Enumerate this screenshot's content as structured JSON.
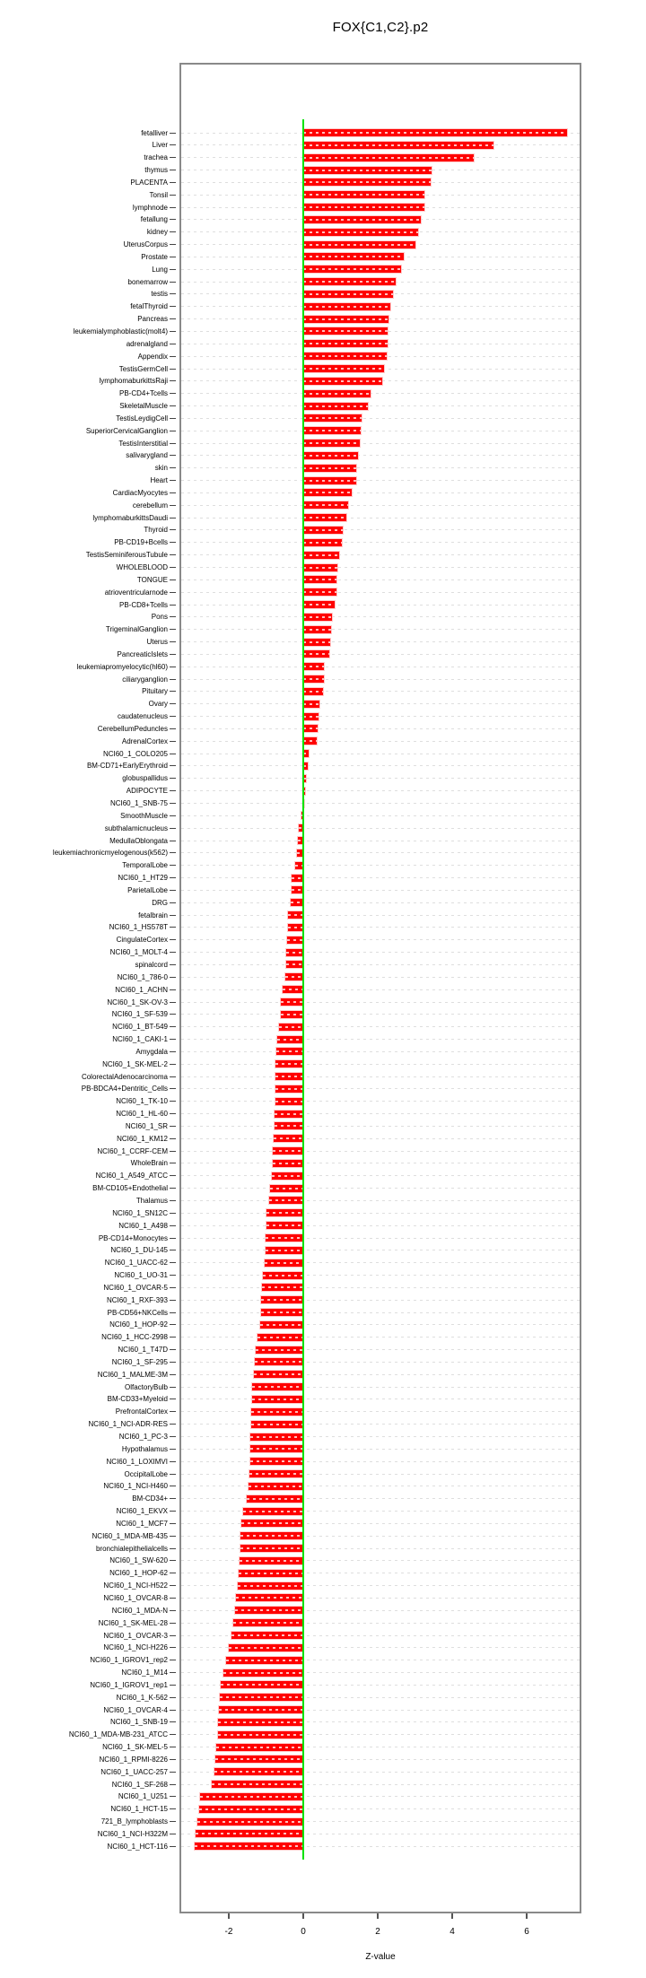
{
  "title": "FOX{C1,C2}.p2",
  "chart_data": {
    "type": "bar",
    "orientation": "horizontal",
    "title": "FOX{C1,C2}.p2",
    "xlabel": "Z-value",
    "ylabel": "",
    "xlim": [
      -3.3,
      7.5
    ],
    "x_ticks": [
      -2,
      0,
      2,
      4,
      6
    ],
    "grid": "dashed horizontal line per category",
    "legend": "none",
    "bar_color": "#ff0000",
    "zero_line_color": "#00e200",
    "grid_color": "#dedede",
    "categories": [
      "fetalliver",
      "Liver",
      "trachea",
      "thymus",
      "PLACENTA",
      "Tonsil",
      "lymphnode",
      "fetallung",
      "kidney",
      "UterusCorpus",
      "Prostate",
      "Lung",
      "bonemarrow",
      "testis",
      "fetalThyroid",
      "Pancreas",
      "leukemialymphoblastic(molt4)",
      "adrenalgland",
      "Appendix",
      "TestisGermCell",
      "lymphomaburkittsRaji",
      "PB-CD4+Tcells",
      "SkeletalMuscle",
      "TestisLeydigCell",
      "SuperiorCervicalGanglion",
      "TestisInterstitial",
      "salivarygland",
      "skin",
      "Heart",
      "CardiacMyocytes",
      "cerebellum",
      "lymphomaburkittsDaudi",
      "Thyroid",
      "PB-CD19+Bcells",
      "TestisSeminiferousTubule",
      "WHOLEBLOOD",
      "TONGUE",
      "atrioventricularnode",
      "PB-CD8+Tcells",
      "Pons",
      "TrigeminalGanglion",
      "Uterus",
      "PancreaticIslets",
      "leukemiapromyelocytic(hl60)",
      "ciliaryganglion",
      "Pituitary",
      "Ovary",
      "caudatenucleus",
      "CerebellumPeduncles",
      "AdrenalCortex",
      "NCI60_1_COLO205",
      "BM-CD71+EarlyErythroid",
      "globuspallidus",
      "ADIPOCYTE",
      "NCI60_1_SNB-75",
      "SmoothMuscle",
      "subthalamicnucleus",
      "MedullaOblongata",
      "leukemiachronicmyelogenous(k562)",
      "TemporalLobe",
      "NCI60_1_HT29",
      "ParietalLobe",
      "DRG",
      "fetalbrain",
      "NCI60_1_HS578T",
      "CingulateCortex",
      "NCI60_1_MOLT-4",
      "spinalcord",
      "NCI60_1_786-0",
      "NCI60_1_ACHN",
      "NCI60_1_SK-OV-3",
      "NCI60_1_SF-539",
      "NCI60_1_BT-549",
      "NCI60_1_CAKI-1",
      "Amygdala",
      "NCI60_1_SK-MEL-2",
      "ColorectalAdenocarcinoma",
      "PB-BDCA4+Dentritic_Cells",
      "NCI60_1_TK-10",
      "NCI60_1_HL-60",
      "NCI60_1_SR",
      "NCI60_1_KM12",
      "NCI60_1_CCRF-CEM",
      "WholeBrain",
      "NCI60_1_A549_ATCC",
      "BM-CD105+Endothelial",
      "Thalamus",
      "NCI60_1_SN12C",
      "NCI60_1_A498",
      "PB-CD14+Monocytes",
      "NCI60_1_DU-145",
      "NCI60_1_UACC-62",
      "NCI60_1_UO-31",
      "NCI60_1_OVCAR-5",
      "NCI60_1_RXF-393",
      "PB-CD56+NKCells",
      "NCI60_1_HOP-92",
      "NCI60_1_HCC-2998",
      "NCI60_1_T47D",
      "NCI60_1_SF-295",
      "NCI60_1_MALME-3M",
      "OlfactoryBulb",
      "BM-CD33+Myeloid",
      "PrefrontalCortex",
      "NCI60_1_NCI-ADR-RES",
      "NCI60_1_PC-3",
      "Hypothalamus",
      "NCI60_1_LOXIMVI",
      "OccipitalLobe",
      "NCI60_1_NCI-H460",
      "BM-CD34+",
      "NCI60_1_EKVX",
      "NCI60_1_MCF7",
      "NCI60_1_MDA-MB-435",
      "bronchialepithelialcells",
      "NCI60_1_SW-620",
      "NCI60_1_HOP-62",
      "NCI60_1_NCI-H522",
      "NCI60_1_OVCAR-8",
      "NCI60_1_MDA-N",
      "NCI60_1_SK-MEL-28",
      "NCI60_1_OVCAR-3",
      "NCI60_1_NCI-H226",
      "NCI60_1_IGROV1_rep2",
      "NCI60_1_M14",
      "NCI60_1_IGROV1_rep1",
      "NCI60_1_K-562",
      "NCI60_1_OVCAR-4",
      "NCI60_1_SNB-19",
      "NCI60_1_MDA-MB-231_ATCC",
      "NCI60_1_SK-MEL-5",
      "NCI60_1_RPMI-8226",
      "NCI60_1_UACC-257",
      "NCI60_1_SF-268",
      "NCI60_1_U251",
      "NCI60_1_HCT-15",
      "721_B_lymphoblasts",
      "NCI60_1_NCI-H322M",
      "NCI60_1_HCT-116"
    ],
    "values": [
      7.08,
      5.11,
      4.57,
      3.44,
      3.42,
      3.26,
      3.25,
      3.16,
      3.09,
      3.0,
      2.71,
      2.63,
      2.48,
      2.41,
      2.34,
      2.3,
      2.27,
      2.26,
      2.24,
      2.17,
      2.12,
      1.81,
      1.73,
      1.57,
      1.54,
      1.52,
      1.47,
      1.43,
      1.42,
      1.3,
      1.21,
      1.16,
      1.05,
      1.03,
      0.96,
      0.92,
      0.88,
      0.88,
      0.85,
      0.76,
      0.75,
      0.72,
      0.69,
      0.55,
      0.55,
      0.53,
      0.43,
      0.4,
      0.38,
      0.35,
      0.14,
      0.13,
      0.08,
      0.05,
      0.02,
      -0.04,
      -0.13,
      -0.15,
      -0.17,
      -0.21,
      -0.31,
      -0.32,
      -0.33,
      -0.4,
      -0.42,
      -0.43,
      -0.46,
      -0.46,
      -0.47,
      -0.56,
      -0.6,
      -0.61,
      -0.66,
      -0.69,
      -0.72,
      -0.74,
      -0.74,
      -0.75,
      -0.75,
      -0.77,
      -0.78,
      -0.8,
      -0.82,
      -0.82,
      -0.84,
      -0.9,
      -0.91,
      -0.99,
      -1.0,
      -1.01,
      -1.02,
      -1.04,
      -1.09,
      -1.12,
      -1.14,
      -1.14,
      -1.16,
      -1.22,
      -1.28,
      -1.3,
      -1.33,
      -1.37,
      -1.38,
      -1.4,
      -1.4,
      -1.41,
      -1.42,
      -1.43,
      -1.45,
      -1.48,
      -1.51,
      -1.62,
      -1.66,
      -1.68,
      -1.68,
      -1.72,
      -1.73,
      -1.76,
      -1.8,
      -1.83,
      -1.88,
      -1.92,
      -2.0,
      -2.08,
      -2.14,
      -2.22,
      -2.23,
      -2.26,
      -2.3,
      -2.3,
      -2.34,
      -2.36,
      -2.39,
      -2.46,
      -2.76,
      -2.8,
      -2.84,
      -2.9,
      -2.92
    ]
  }
}
